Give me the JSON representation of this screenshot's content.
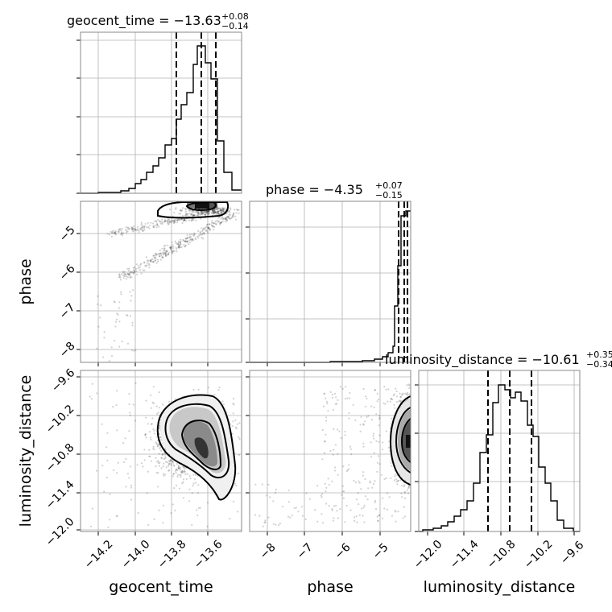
{
  "chart_data": {
    "type": "corner",
    "parameters": [
      {
        "name": "geocent_time",
        "label": "geocent_time",
        "median": -13.63,
        "plus": "+0.08",
        "minus": "−0.14",
        "title_main": "geocent_time = −13.63",
        "quantiles": [
          -13.77,
          -13.63,
          -13.55
        ],
        "range": [
          -14.42,
          -13.48
        ],
        "ticks": [
          -14.2,
          -14.0,
          -13.8,
          -13.6
        ],
        "tick_labels": [
          "−14.2",
          "−14.0",
          "−13.8",
          "−13.6"
        ],
        "hist_counts": [
          0.5,
          1,
          1,
          2,
          4,
          7,
          10,
          14,
          20,
          30,
          42,
          60,
          62,
          75,
          98,
          92,
          75,
          32,
          10
        ]
      },
      {
        "name": "phase",
        "label": "phase",
        "median": -4.35,
        "plus": "+0.07",
        "minus": "−0.15",
        "title_main": "phase = −4.35",
        "quantiles": [
          -4.5,
          -4.35,
          -4.28
        ],
        "range": [
          -8.5,
          -4.2
        ],
        "ticks": [
          -8,
          -7,
          -6,
          -5
        ],
        "tick_labels": [
          "−8",
          "−7",
          "−6",
          "−5"
        ],
        "hist_counts": [
          0.5,
          0.5,
          0.5,
          0.5,
          0.5,
          0.5,
          0.5,
          0.5,
          0.5,
          0.5,
          0.5,
          1,
          1,
          1.5,
          2,
          2.5,
          4,
          5,
          7,
          20,
          36,
          64,
          97
        ]
      },
      {
        "name": "luminosity_distance",
        "label": "luminosity_distance",
        "median": -10.61,
        "plus": "+0.35",
        "minus": "−0.34",
        "title_main": "luminosity_distance = −10.61",
        "quantiles": [
          -10.95,
          -10.61,
          -10.26
        ],
        "range": [
          -12.1,
          -9.5
        ],
        "ticks": [
          -12.0,
          -11.4,
          -10.8,
          -10.2,
          -9.6
        ],
        "tick_labels": [
          "−12.0",
          "−11.4",
          "−10.8",
          "−10.2",
          "−9.6"
        ],
        "hist_counts": [
          2,
          4,
          6,
          8,
          12,
          18,
          25,
          42,
          62,
          80,
          92,
          88,
          82,
          92,
          76,
          66,
          45,
          34,
          20,
          8,
          2
        ]
      }
    ],
    "grid": true,
    "contours": "filled-density",
    "colors": {
      "line": "#000000",
      "grid": "#b0b0b0",
      "points": "#000000"
    }
  }
}
